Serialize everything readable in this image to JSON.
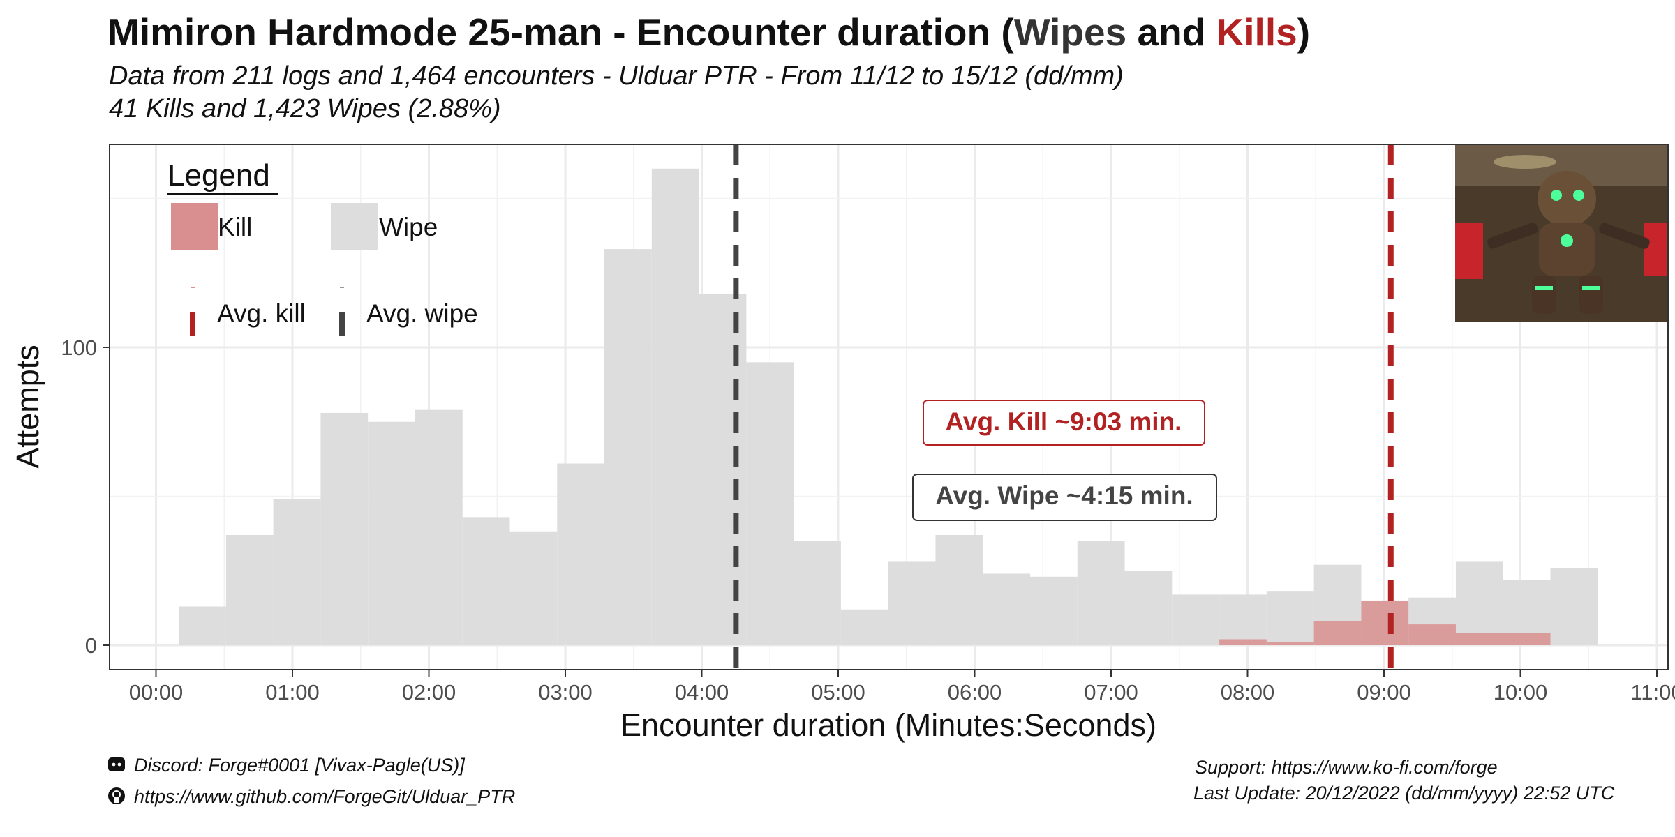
{
  "title": {
    "main": "Mimiron Hardmode 25-man - Encounter duration (",
    "wipes": "Wipes",
    "and": " and ",
    "kills": "Kills",
    "close": ")"
  },
  "subtitle": {
    "line1": "Data from 211 logs and 1,464 encounters - Ulduar PTR - From 11/12 to 15/12 (dd/mm)",
    "line2": "41 Kills and 1,423 Wipes (2.88%)"
  },
  "legend": {
    "title": "Legend",
    "kill": "Kill",
    "wipe": "Wipe",
    "avg_kill": "Avg. kill",
    "avg_wipe": "Avg. wipe"
  },
  "annotations": {
    "avg_kill": "Avg. Kill ~9:03 min.",
    "avg_wipe": "Avg. Wipe ~4:15 min."
  },
  "footer": {
    "discord": "Discord: Forge#0001 [Vivax-Pagle(US)]",
    "github": "https://www.github.com/ForgeGit/Ulduar_PTR",
    "support": "Support: https://www.ko-fi.com/forge",
    "update": "Last Update: 20/12/2022 (dd/mm/yyyy)  22:52 UTC"
  },
  "colors": {
    "kill": "#b22222",
    "kill_fill": "#d98f8f",
    "wipe_fill": "#dddddd",
    "avg_wipe_line": "#444444",
    "grid": "#ebebeb"
  },
  "chart_data": {
    "type": "bar",
    "xlabel": "Encounter duration (Minutes:Seconds)",
    "ylabel": "Attempts",
    "xlim": [
      -20,
      662
    ],
    "ylim": [
      -8,
      168
    ],
    "x_ticks": [
      0,
      60,
      120,
      180,
      240,
      300,
      360,
      420,
      480,
      540,
      600,
      660
    ],
    "x_tick_labels": [
      "00:00",
      "01:00",
      "02:00",
      "03:00",
      "04:00",
      "05:00",
      "06:00",
      "07:00",
      "08:00",
      "09:00",
      "10:00",
      "11:00"
    ],
    "y_ticks": [
      0,
      100
    ],
    "y_tick_labels": [
      "0",
      "100"
    ],
    "bin_width_seconds": 20.8,
    "grid": true,
    "legend_position": "top-left",
    "series": [
      {
        "name": "Wipe",
        "bin_starts_seconds": [
          10,
          30.8,
          51.6,
          72.4,
          93.2,
          114,
          134.8,
          155.6,
          176.4,
          197.2,
          218,
          238.8,
          259.6,
          280.4,
          301.2,
          322,
          342.8,
          363.6,
          384.4,
          405.2,
          426,
          446.8,
          467.6,
          488.4,
          509.2,
          530,
          550.8,
          571.6,
          592.4,
          613.2
        ],
        "values": [
          13,
          37,
          49,
          78,
          75,
          79,
          43,
          38,
          61,
          133,
          160,
          118,
          95,
          35,
          12,
          28,
          37,
          24,
          23,
          35,
          25,
          17,
          17,
          18,
          27,
          15,
          16,
          28,
          22,
          26
        ]
      },
      {
        "name": "Kill",
        "bin_starts_seconds": [
          467.6,
          488.4,
          509.2,
          530,
          550.8,
          571.6,
          592.4
        ],
        "values": [
          2,
          1,
          8,
          15,
          7,
          4,
          4
        ]
      }
    ],
    "averages_seconds": {
      "kill": 543,
      "wipe": 255
    }
  }
}
